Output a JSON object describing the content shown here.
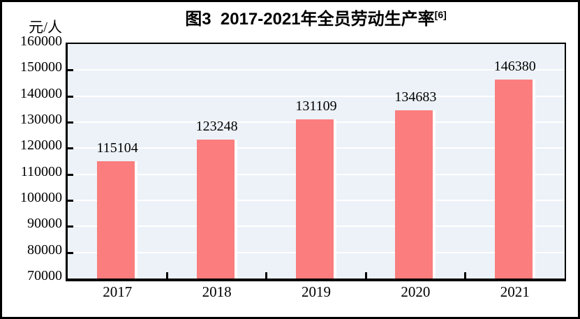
{
  "header": {
    "title": "图3  2017-2021年全员劳动生产率",
    "title_footnote": "[6]"
  },
  "colors": {
    "bar": "#fb7d7d",
    "bar_edge": "#ffffff",
    "plot_bg": "#ecf2f8",
    "gridline": "#ffffff",
    "axis": "#000000",
    "text": "#000000"
  },
  "chart_data": {
    "type": "bar",
    "title": "图3  2017-2021年全员劳动生产率",
    "title_footnote": "[6]",
    "xlabel": "",
    "ylabel": "元/人",
    "categories": [
      "2017",
      "2018",
      "2019",
      "2020",
      "2021"
    ],
    "values": [
      115104,
      123248,
      131109,
      134683,
      146380
    ],
    "value_labels": [
      "115104",
      "123248",
      "131109",
      "134683",
      "146380"
    ],
    "ylim": [
      70000,
      160000
    ],
    "ytick_step": 10000,
    "ytick_labels": [
      "160000",
      "150000",
      "140000",
      "130000",
      "120000",
      "110000",
      "100000",
      "90000",
      "80000",
      "70000"
    ],
    "grid": "horizontal",
    "legend_position": "none"
  }
}
